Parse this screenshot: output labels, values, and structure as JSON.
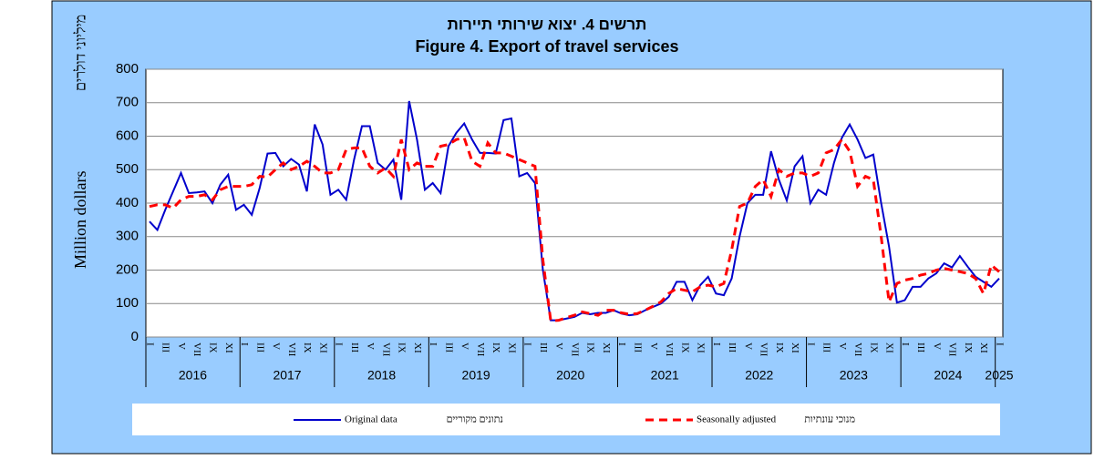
{
  "chart_data": {
    "type": "line",
    "title_he": "תרשים 4. יצוא שירותי תיירות",
    "title": "Figure 4. Export of travel services",
    "ylabel": "Million dollars",
    "ylabel_he": "מיליוני דולרים",
    "categories": [
      "I",
      null,
      "III",
      null,
      "V",
      null,
      "VII",
      null,
      "IX",
      null,
      "XI",
      null,
      "I",
      null,
      "III",
      null,
      "V",
      null,
      "VII",
      null,
      "IX",
      null,
      "XI",
      null,
      "I",
      null,
      "III",
      null,
      "V",
      null,
      "VII",
      null,
      "IX",
      null,
      "XI",
      null,
      "I",
      null,
      "III",
      null,
      "V",
      null,
      "VII",
      null,
      "IX",
      null,
      "XI",
      null,
      "I",
      null,
      "III",
      null,
      "V",
      null,
      "VII",
      null,
      "IX",
      null,
      "XI",
      null,
      "I",
      null,
      "III",
      null,
      "V",
      null,
      "VII",
      null,
      "IX",
      null,
      "XI",
      null,
      "I",
      null,
      "III",
      null,
      "V",
      null,
      "VII",
      null,
      "IX",
      null,
      "XI",
      null,
      "I",
      null,
      "III",
      null,
      "V",
      null,
      "VII",
      null,
      "IX",
      null,
      "XI",
      null,
      "I",
      null,
      "III",
      null,
      "V",
      null,
      "VII",
      null,
      "IX",
      null,
      "XI",
      null,
      "I"
    ],
    "years": [
      "2016",
      "2017",
      "2018",
      "2019",
      "2020",
      "2021",
      "2022",
      "2023",
      "2024",
      "2025"
    ],
    "series": [
      {
        "name": "Original data",
        "name_he": "נתונים מקוריים",
        "color": "#0000cc",
        "dash": false,
        "values": [
          345,
          320,
          380,
          435,
          490,
          430,
          432,
          435,
          400,
          455,
          485,
          380,
          395,
          365,
          445,
          548,
          550,
          510,
          532,
          515,
          435,
          635,
          575,
          425,
          440,
          410,
          530,
          630,
          630,
          520,
          500,
          530,
          410,
          705,
          590,
          440,
          460,
          430,
          570,
          610,
          638,
          590,
          550,
          550,
          548,
          648,
          653,
          480,
          490,
          460,
          200,
          50,
          50,
          55,
          60,
          72,
          68,
          72,
          72,
          80,
          70,
          65,
          68,
          80,
          90,
          100,
          120,
          165,
          165,
          110,
          155,
          180,
          130,
          125,
          175,
          300,
          400,
          425,
          425,
          555,
          470,
          408,
          510,
          540,
          400,
          440,
          425,
          520,
          595,
          635,
          590,
          535,
          545,
          400,
          270,
          103,
          110,
          150,
          150,
          175,
          190,
          220,
          208,
          242,
          210,
          180,
          165,
          150,
          175
        ]
      },
      {
        "name": "Seasonally adjusted",
        "name_he": "מנוכי עונתיות",
        "color": "#ff0000",
        "dash": true,
        "values": [
          390,
          395,
          395,
          385,
          410,
          420,
          420,
          425,
          410,
          440,
          450,
          450,
          450,
          455,
          480,
          478,
          500,
          520,
          500,
          510,
          525,
          510,
          490,
          490,
          500,
          560,
          565,
          565,
          510,
          490,
          505,
          480,
          590,
          500,
          520,
          510,
          510,
          570,
          575,
          590,
          595,
          525,
          510,
          580,
          550,
          550,
          540,
          530,
          520,
          510,
          230,
          48,
          50,
          58,
          65,
          75,
          70,
          65,
          80,
          80,
          72,
          68,
          70,
          80,
          92,
          105,
          130,
          145,
          140,
          135,
          150,
          155,
          150,
          160,
          260,
          390,
          400,
          450,
          470,
          420,
          500,
          480,
          490,
          490,
          480,
          490,
          550,
          560,
          590,
          555,
          450,
          480,
          470,
          300,
          105,
          160,
          170,
          175,
          185,
          190,
          200,
          205,
          200,
          195,
          190,
          175,
          130,
          215,
          195
        ]
      }
    ],
    "ylim": [
      0,
      800
    ],
    "yticks": [
      0,
      100,
      200,
      300,
      400,
      500,
      600,
      700,
      800
    ],
    "grid": true
  }
}
